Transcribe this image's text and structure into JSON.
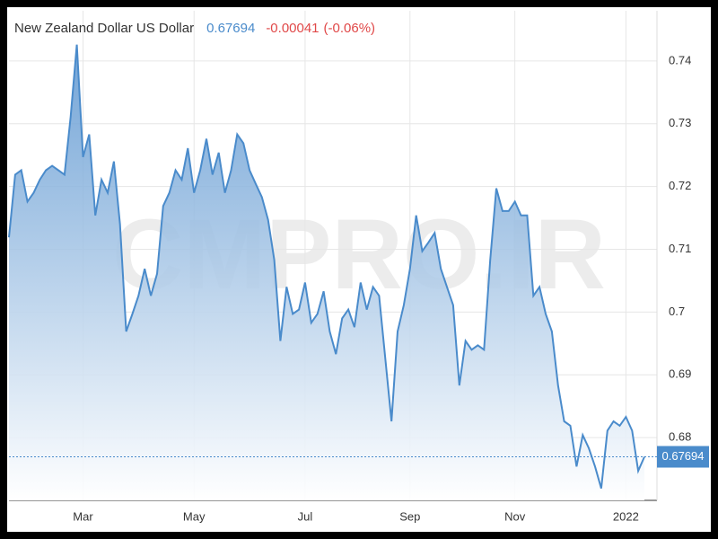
{
  "chart_data": {
    "type": "area",
    "title": "New Zealand Dollar US Dollar",
    "change": -0.00041,
    "change_percent": "(-0.06%)",
    "watermark": "CMPRO.IR",
    "categories": [
      null,
      null,
      null,
      null,
      null,
      null,
      null,
      null,
      null,
      null,
      null,
      null,
      "Mar",
      null,
      null,
      null,
      null,
      null,
      null,
      null,
      null,
      null,
      null,
      null,
      null,
      null,
      null,
      null,
      null,
      null,
      "May",
      null,
      null,
      null,
      null,
      null,
      null,
      null,
      null,
      null,
      null,
      null,
      null,
      null,
      null,
      null,
      null,
      null,
      "Jul",
      null,
      null,
      null,
      null,
      null,
      null,
      null,
      null,
      null,
      null,
      null,
      null,
      null,
      null,
      null,
      null,
      "Sep",
      null,
      null,
      null,
      null,
      null,
      null,
      null,
      null,
      null,
      null,
      null,
      null,
      null,
      null,
      null,
      null,
      "Nov",
      null,
      null,
      null,
      null,
      null,
      null,
      null,
      null,
      null,
      null,
      null,
      null,
      null,
      null,
      null,
      null,
      null,
      "2022",
      null,
      null,
      null
    ],
    "series": [
      {
        "name": "New Zealand Dollar US Dollar",
        "color": "#4a8bcb",
        "values": [
          0.7119,
          0.7219,
          0.7226,
          0.7176,
          0.719,
          0.7211,
          0.7226,
          0.7233,
          0.7226,
          0.7219,
          0.7311,
          0.7426,
          0.7247,
          0.7283,
          0.7154,
          0.7211,
          0.719,
          0.724,
          0.714,
          0.6969,
          0.6997,
          0.7026,
          0.7069,
          0.7026,
          0.7061,
          0.7169,
          0.719,
          0.7226,
          0.7211,
          0.7261,
          0.719,
          0.7226,
          0.7276,
          0.7219,
          0.7254,
          0.719,
          0.7226,
          0.7283,
          0.7269,
          0.7226,
          0.7204,
          0.7183,
          0.7147,
          0.7083,
          0.6954,
          0.704,
          0.6997,
          0.7004,
          0.7047,
          0.6983,
          0.6997,
          0.7033,
          0.6969,
          0.6933,
          0.699,
          0.7004,
          0.6976,
          0.7047,
          0.7004,
          0.704,
          0.7026,
          0.6926,
          0.6826,
          0.6969,
          0.7011,
          0.7069,
          0.7154,
          0.7097,
          0.7111,
          0.7126,
          0.7069,
          0.704,
          0.7011,
          0.6883,
          0.6954,
          0.694,
          0.6947,
          0.694,
          0.7083,
          0.7197,
          0.7161,
          0.7161,
          0.7176,
          0.7154,
          0.7154,
          0.7026,
          0.704,
          0.6997,
          0.6969,
          0.6883,
          0.6826,
          0.6819,
          0.6754,
          0.6804,
          0.6783,
          0.6754,
          0.6719,
          0.6811,
          0.6826,
          0.6819,
          0.6833,
          0.6811,
          0.6747,
          0.67694
        ]
      }
    ],
    "ylim": [
      0.67,
      0.748
    ],
    "yticks": [
      0.68,
      0.69,
      0.7,
      0.71,
      0.72,
      0.73,
      0.74
    ],
    "grid": true
  }
}
